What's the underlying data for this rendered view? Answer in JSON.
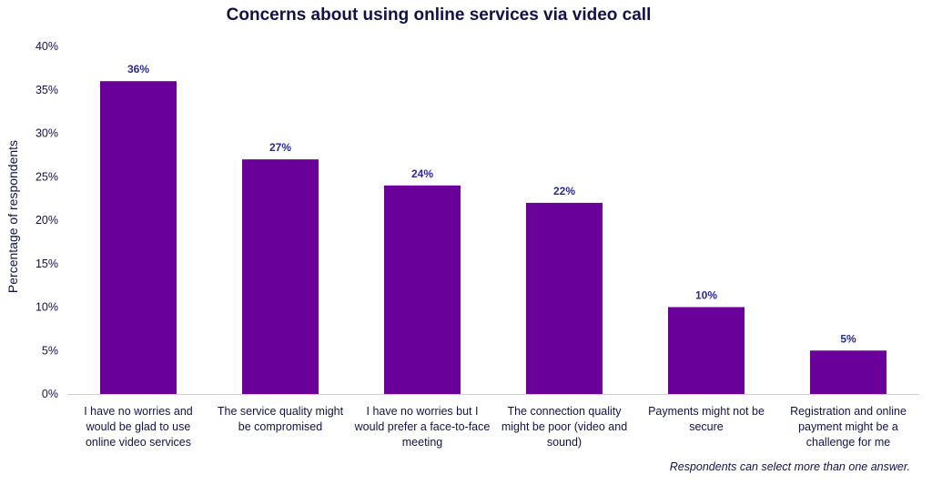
{
  "chart_data": {
    "type": "bar",
    "title": "Concerns about using online services via video call",
    "ylabel": "Percentage of respondents",
    "xlabel": "",
    "ylim": [
      0,
      40
    ],
    "yticks": [
      "0%",
      "5%",
      "10%",
      "15%",
      "20%",
      "25%",
      "30%",
      "35%",
      "40%"
    ],
    "grid": false,
    "legend": "none",
    "categories": [
      [
        "I have no worries and",
        "would be glad to use",
        "online video services"
      ],
      [
        "The service quality might",
        "be compromised"
      ],
      [
        "I have no worries but I",
        "would prefer a face-to-face",
        "meeting"
      ],
      [
        "The connection quality",
        "might be poor (video and",
        "sound)"
      ],
      [
        "Payments might not be",
        "secure"
      ],
      [
        "Registration and online",
        "payment might be a",
        "challenge for me"
      ]
    ],
    "values": [
      36,
      27,
      24,
      22,
      10,
      5
    ],
    "data_labels": [
      "36%",
      "27%",
      "24%",
      "22%",
      "10%",
      "5%"
    ],
    "bar_color": "#6a0099",
    "note": "Respondents can select more than one answer."
  }
}
